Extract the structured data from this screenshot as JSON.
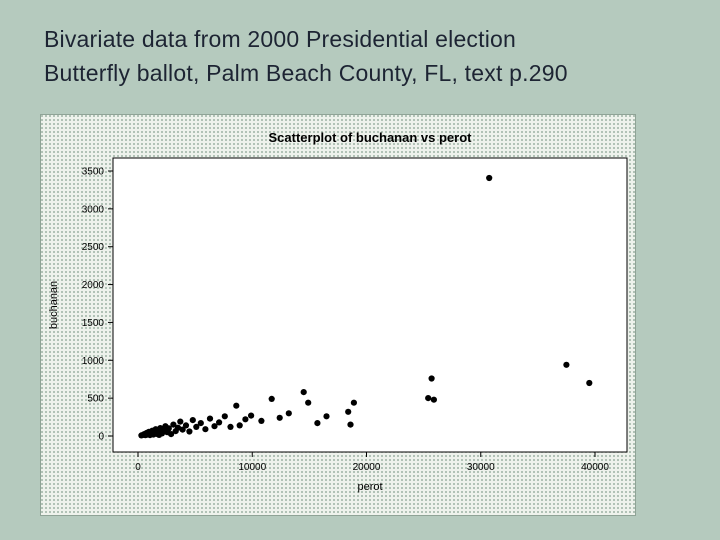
{
  "slide": {
    "title_line1": "Bivariate data from 2000 Presidential election",
    "title_line2": "Butterfly ballot, Palm Beach County, FL, text p.290"
  },
  "colors": {
    "slide_background": "#b5cabe",
    "title_text": "#1d2433",
    "plot_background": "#ffffff",
    "marker_color": "#000000",
    "panel_texture_dot": "#9db2a4"
  },
  "chart_data": {
    "type": "scatter",
    "title": "Scatterplot of buchanan vs perot",
    "xlabel": "perot",
    "ylabel": "buchanan",
    "xlim": [
      0,
      40000
    ],
    "ylim": [
      0,
      3500
    ],
    "xticks": [
      0,
      10000,
      20000,
      30000,
      40000
    ],
    "yticks": [
      0,
      500,
      1000,
      1500,
      2000,
      2500,
      3000,
      3500
    ],
    "grid": false,
    "legend": "none",
    "points": [
      [
        300,
        8
      ],
      [
        450,
        15
      ],
      [
        550,
        25
      ],
      [
        650,
        10
      ],
      [
        750,
        40
      ],
      [
        850,
        18
      ],
      [
        950,
        55
      ],
      [
        1050,
        12
      ],
      [
        1150,
        30
      ],
      [
        1250,
        70
      ],
      [
        1350,
        20
      ],
      [
        1450,
        45
      ],
      [
        1550,
        90
      ],
      [
        1650,
        28
      ],
      [
        1750,
        60
      ],
      [
        1850,
        15
      ],
      [
        1950,
        105
      ],
      [
        2100,
        35
      ],
      [
        2250,
        80
      ],
      [
        2400,
        130
      ],
      [
        2550,
        50
      ],
      [
        2700,
        100
      ],
      [
        2900,
        25
      ],
      [
        3100,
        150
      ],
      [
        3300,
        65
      ],
      [
        3500,
        110
      ],
      [
        3700,
        190
      ],
      [
        3900,
        85
      ],
      [
        4200,
        140
      ],
      [
        4500,
        60
      ],
      [
        4800,
        210
      ],
      [
        5100,
        120
      ],
      [
        5500,
        170
      ],
      [
        5900,
        90
      ],
      [
        6300,
        230
      ],
      [
        6700,
        130
      ],
      [
        7100,
        180
      ],
      [
        7600,
        260
      ],
      [
        8100,
        120
      ],
      [
        8600,
        400
      ],
      [
        8900,
        140
      ],
      [
        9400,
        220
      ],
      [
        9900,
        270
      ],
      [
        10800,
        200
      ],
      [
        11700,
        490
      ],
      [
        12400,
        240
      ],
      [
        13200,
        300
      ],
      [
        14500,
        580
      ],
      [
        14900,
        440
      ],
      [
        15700,
        170
      ],
      [
        16500,
        260
      ],
      [
        18400,
        320
      ],
      [
        18600,
        150
      ],
      [
        18900,
        440
      ],
      [
        25400,
        500
      ],
      [
        25700,
        760
      ],
      [
        25900,
        480
      ],
      [
        30740,
        3407
      ],
      [
        37500,
        940
      ],
      [
        39500,
        700
      ]
    ]
  }
}
